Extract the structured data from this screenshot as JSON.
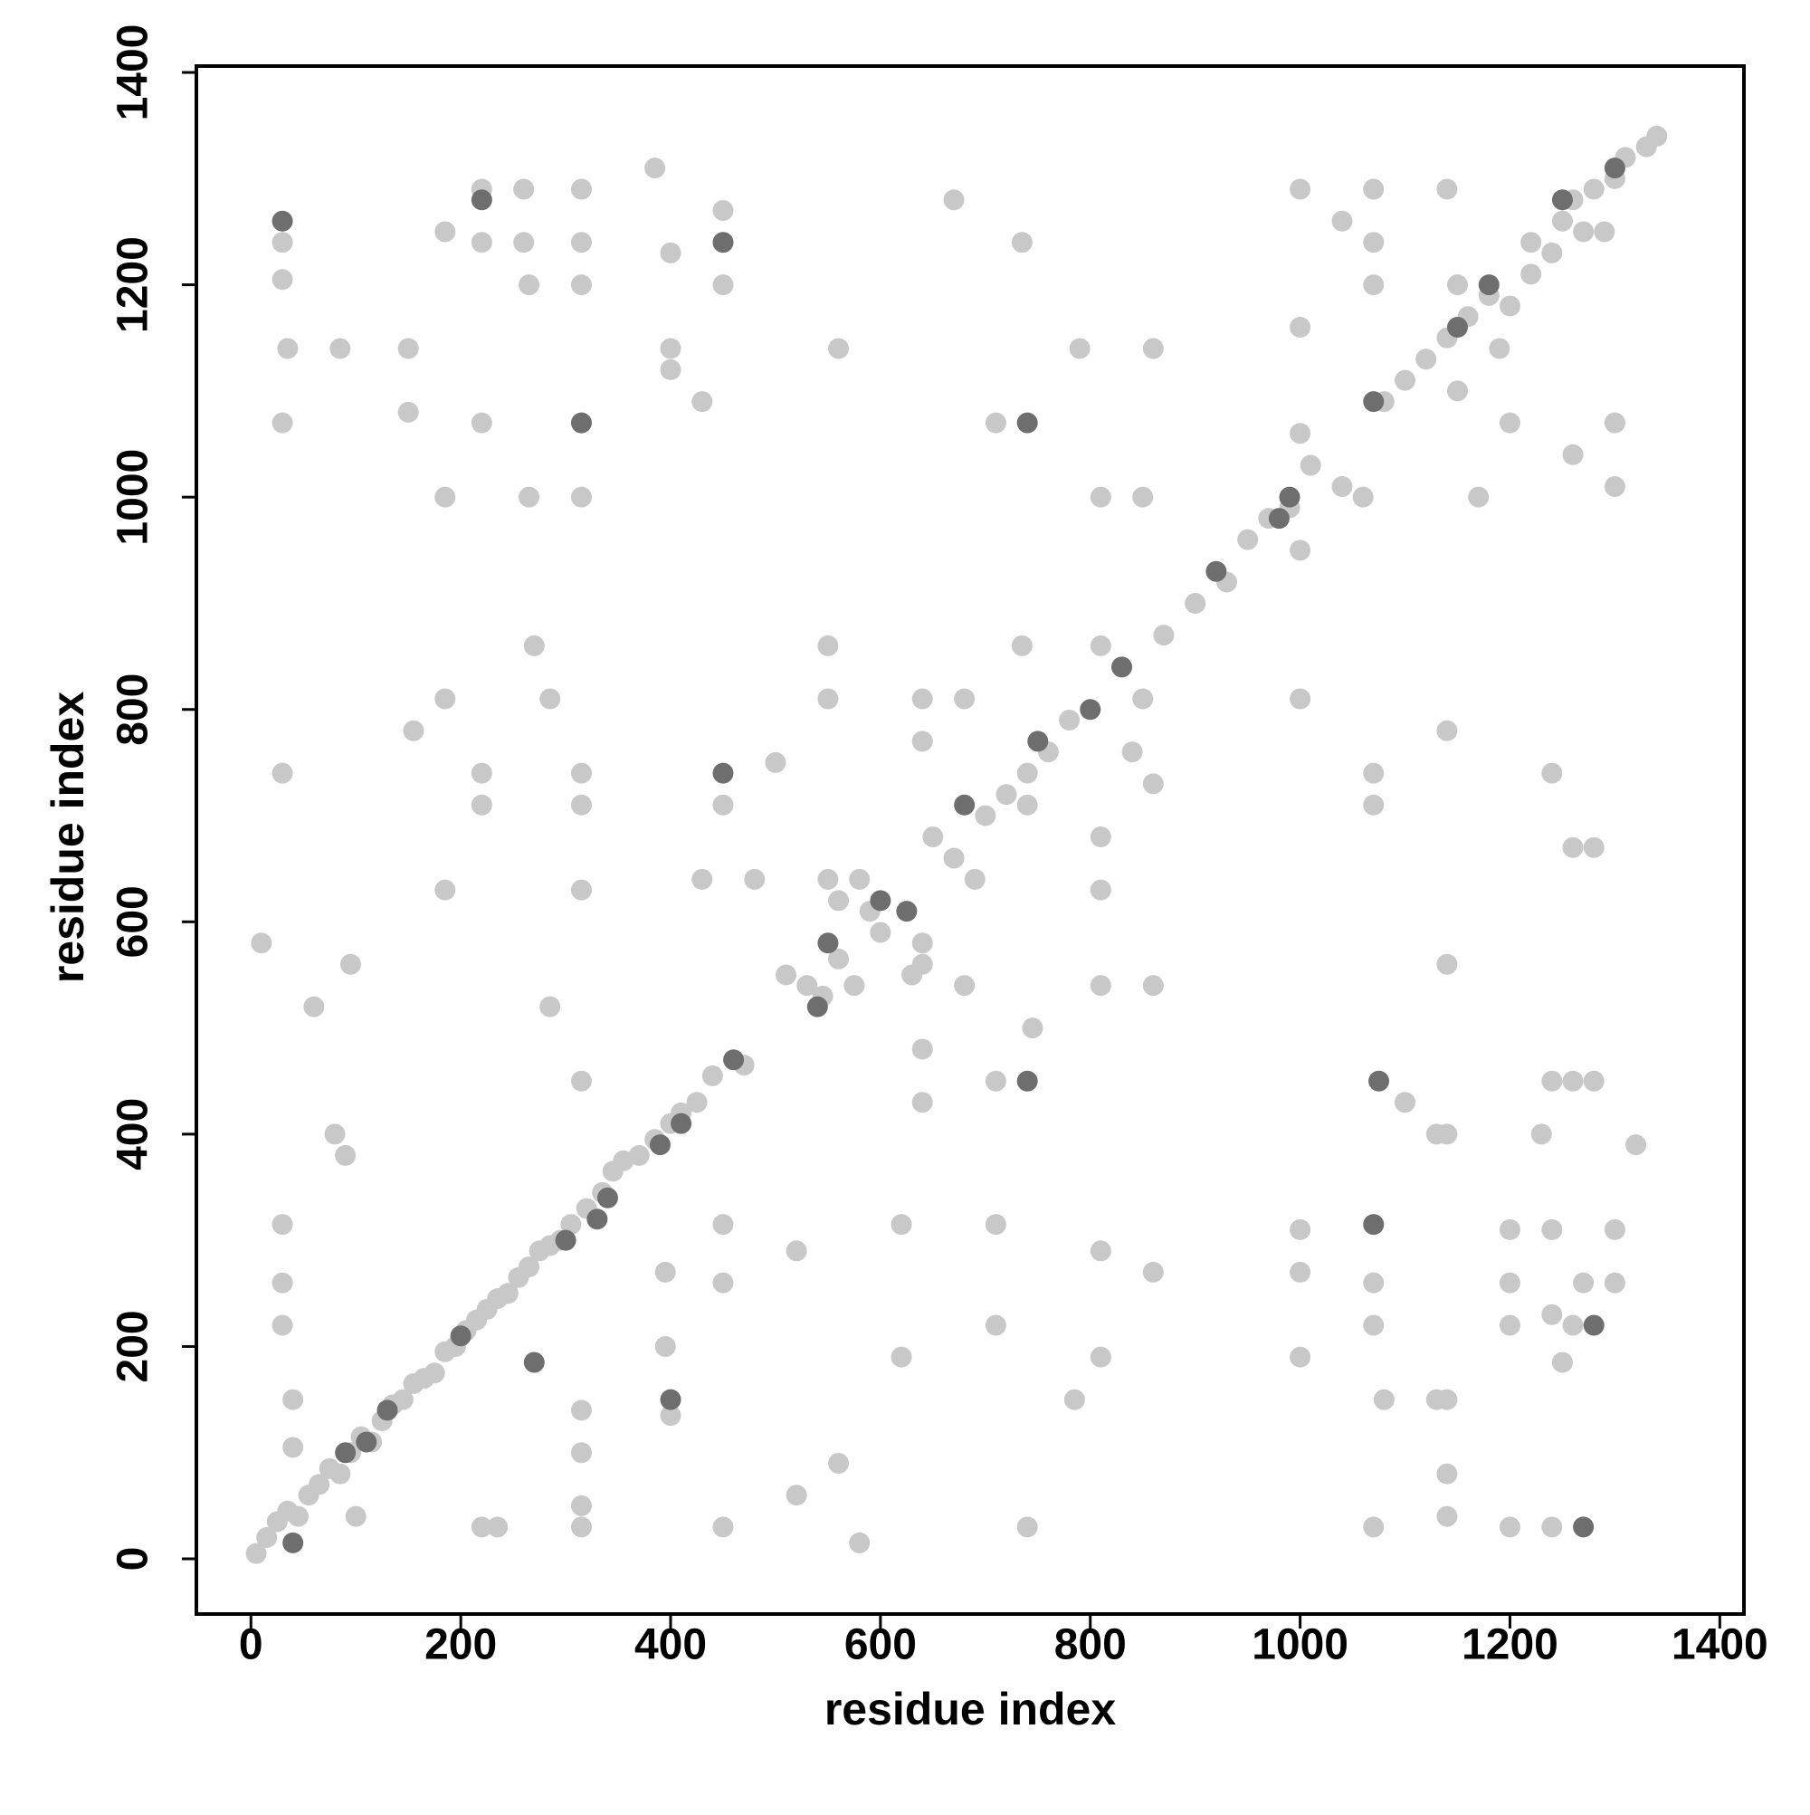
{
  "chart_data": {
    "type": "scatter",
    "xlabel": "residue index",
    "ylabel": "residue index",
    "xlim": [
      -52,
      1423
    ],
    "ylim": [
      -52,
      1406
    ],
    "xticks": [
      0,
      200,
      400,
      600,
      800,
      1000,
      1200,
      1400
    ],
    "yticks": [
      0,
      200,
      400,
      600,
      800,
      1000,
      1200,
      1400
    ],
    "series": [
      {
        "color": "#c8c8c8",
        "x": [
          5,
          15,
          25,
          35,
          45,
          55,
          65,
          75,
          85,
          95,
          105,
          115,
          125,
          135,
          145,
          155,
          165,
          175,
          185,
          195,
          205,
          215,
          225,
          235,
          245,
          255,
          265,
          275,
          285,
          295,
          305,
          320,
          335,
          345,
          355,
          370,
          385,
          400,
          410,
          425,
          440,
          470,
          510,
          530,
          545,
          560,
          575,
          590,
          600,
          640,
          650,
          670,
          690,
          700,
          720,
          740,
          760,
          780,
          810,
          830,
          850,
          870,
          900,
          930,
          950,
          970,
          990,
          1010,
          1040,
          1060,
          1080,
          1100,
          1120,
          1140,
          1150,
          1160,
          1180,
          1200,
          1220,
          1240,
          1250,
          1260,
          1270,
          1280,
          1300,
          1310,
          1330,
          1340,
          1220,
          1190,
          1150,
          1290,
          550,
          560,
          580,
          630,
          640,
          1000,
          1000,
          30,
          30,
          35,
          30,
          30,
          30,
          30,
          30,
          10,
          60,
          85,
          95,
          80,
          90,
          150,
          150,
          155,
          185,
          185,
          185,
          185,
          220,
          220,
          220,
          220,
          220,
          220,
          235,
          260,
          260,
          265,
          265,
          270,
          285,
          285,
          315,
          315,
          315,
          315,
          315,
          315,
          315,
          315,
          315,
          315,
          315,
          315,
          385,
          400,
          400,
          400,
          430,
          430,
          450,
          450,
          450,
          450,
          450,
          450,
          450,
          480,
          500,
          520,
          520,
          550,
          550,
          560,
          560,
          580,
          640,
          640,
          640,
          640,
          670,
          680,
          680,
          710,
          710,
          710,
          710,
          735,
          735,
          740,
          740,
          745,
          790,
          785,
          810,
          810,
          810,
          810,
          810,
          810,
          840,
          850,
          860,
          860,
          860,
          1000,
          1000,
          1000,
          1000,
          1000,
          1000,
          1040,
          1070,
          1070,
          1070,
          1070,
          1070,
          1070,
          1070,
          1070,
          1080,
          1100,
          1130,
          1130,
          1140,
          1140,
          1140,
          1140,
          1140,
          1140,
          1140,
          1200,
          1200,
          1200,
          1200,
          1200,
          1230,
          1240,
          1240,
          1240,
          1240,
          1240,
          1260,
          1260,
          1260,
          1270,
          1280,
          1280,
          1300,
          1300,
          1300,
          1300,
          1320,
          1170,
          1260,
          1250,
          100,
          400,
          395,
          395,
          40,
          40,
          620,
          620,
          860
        ],
        "y": [
          5,
          20,
          35,
          45,
          40,
          60,
          70,
          85,
          80,
          100,
          115,
          110,
          130,
          145,
          150,
          165,
          170,
          175,
          195,
          200,
          215,
          225,
          235,
          245,
          250,
          265,
          275,
          290,
          295,
          300,
          315,
          330,
          345,
          365,
          375,
          380,
          395,
          410,
          420,
          430,
          455,
          465,
          550,
          540,
          530,
          565,
          540,
          610,
          590,
          580,
          680,
          660,
          640,
          700,
          720,
          740,
          760,
          790,
          860,
          840,
          810,
          870,
          900,
          920,
          960,
          980,
          990,
          1030,
          1010,
          1000,
          1090,
          1110,
          1130,
          1150,
          1100,
          1170,
          1190,
          1180,
          1210,
          1230,
          1260,
          1280,
          1250,
          1290,
          1300,
          1320,
          1330,
          1340,
          1240,
          1140,
          1200,
          1250,
          640,
          620,
          640,
          550,
          560,
          1060,
          950,
          1240,
          1205,
          1140,
          1070,
          740,
          315,
          260,
          220,
          580,
          520,
          1140,
          560,
          400,
          380,
          1140,
          1080,
          780,
          1250,
          1000,
          810,
          630,
          1290,
          1240,
          1070,
          740,
          710,
          30,
          30,
          1290,
          1240,
          1200,
          1000,
          860,
          810,
          520,
          1290,
          1240,
          1200,
          1000,
          740,
          710,
          630,
          450,
          140,
          100,
          50,
          30,
          1310,
          1230,
          1140,
          1120,
          1090,
          640,
          1270,
          1240,
          1200,
          710,
          315,
          260,
          30,
          640,
          750,
          290,
          60,
          860,
          810,
          1140,
          90,
          15,
          810,
          770,
          480,
          430,
          1280,
          810,
          540,
          1070,
          450,
          315,
          220,
          1240,
          860,
          710,
          30,
          500,
          1140,
          150,
          1000,
          680,
          630,
          540,
          290,
          190,
          760,
          1000,
          730,
          540,
          270,
          1290,
          1160,
          810,
          310,
          270,
          190,
          1260,
          1290,
          1240,
          1200,
          740,
          710,
          260,
          220,
          30,
          150,
          430,
          400,
          150,
          1290,
          780,
          560,
          400,
          150,
          80,
          40,
          1070,
          310,
          260,
          220,
          30,
          400,
          740,
          450,
          310,
          230,
          30,
          1040,
          670,
          450,
          260,
          670,
          450,
          1070,
          1010,
          310,
          260,
          390,
          1000,
          220,
          185,
          40,
          135,
          200,
          270,
          150,
          105,
          190,
          315,
          1140
        ]
      },
      {
        "color": "#6e6e6e",
        "x": [
          30,
          40,
          90,
          110,
          130,
          200,
          220,
          270,
          300,
          330,
          340,
          390,
          400,
          410,
          450,
          450,
          460,
          540,
          550,
          600,
          625,
          680,
          740,
          740,
          750,
          800,
          830,
          920,
          980,
          990,
          1070,
          1075,
          1070,
          1150,
          1180,
          1270,
          1280,
          1300,
          1250,
          315
        ],
        "y": [
          1260,
          15,
          100,
          110,
          140,
          210,
          1280,
          185,
          300,
          320,
          340,
          390,
          150,
          410,
          1240,
          740,
          470,
          520,
          580,
          620,
          610,
          710,
          1070,
          450,
          770,
          800,
          840,
          930,
          980,
          1000,
          1090,
          450,
          315,
          1160,
          1200,
          30,
          220,
          1310,
          1280,
          1070
        ]
      }
    ]
  }
}
